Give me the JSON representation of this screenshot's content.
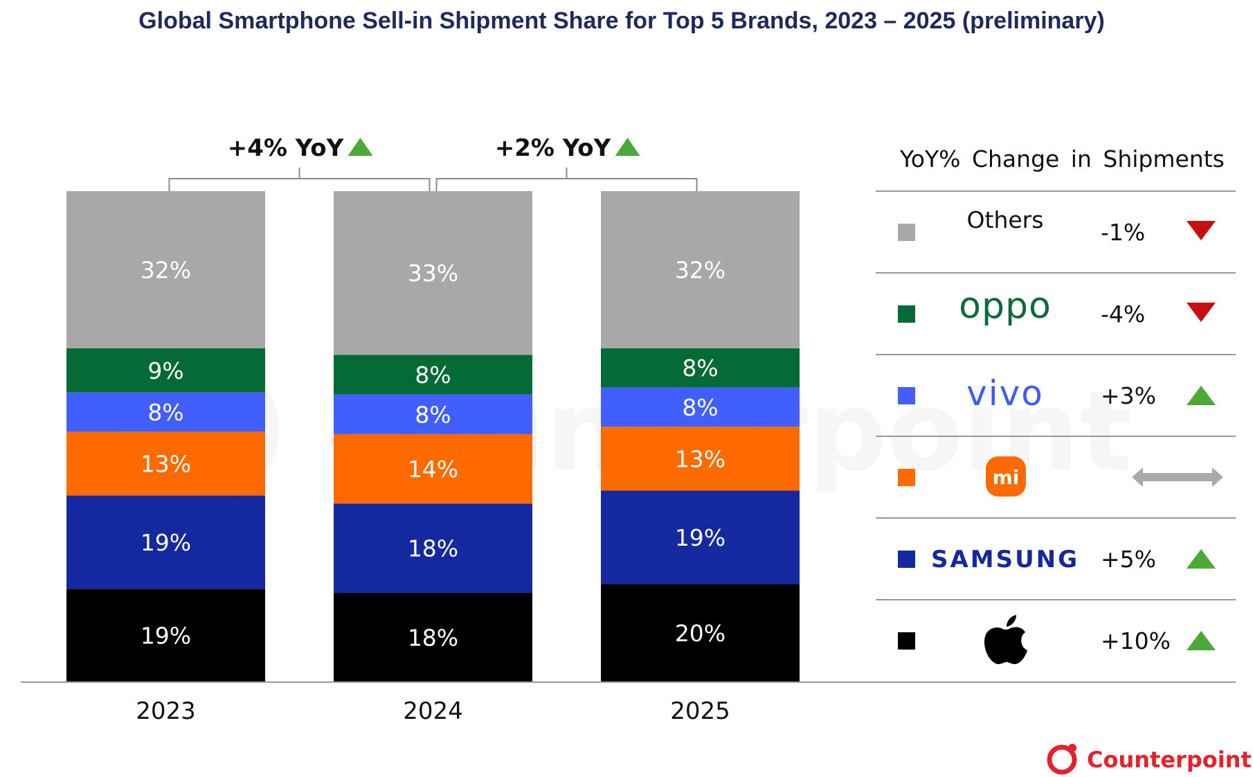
{
  "title": "Global Smartphone Sell-in Shipment Share for Top 5 Brands, 2023 – 2025 (preliminary)",
  "chart_data": {
    "type": "bar",
    "stacked": true,
    "categories": [
      "2023",
      "2024",
      "2025"
    ],
    "series": [
      {
        "key": "apple",
        "color": "#000000",
        "text_color": "#ffffff",
        "values": [
          19,
          18,
          20
        ]
      },
      {
        "key": "samsung",
        "color": "#1428a0",
        "text_color": "#ffffff",
        "values": [
          19,
          18,
          19
        ]
      },
      {
        "key": "xiaomi",
        "color": "#ff6a00",
        "text_color": "#ffffff",
        "values": [
          13,
          14,
          13
        ]
      },
      {
        "key": "vivo",
        "color": "#415fff",
        "text_color": "#ffffff",
        "values": [
          8,
          8,
          8
        ]
      },
      {
        "key": "oppo",
        "color": "#046b37",
        "text_color": "#ffffff",
        "values": [
          9,
          8,
          8
        ]
      },
      {
        "key": "others",
        "name": "Others",
        "color": "#a8a8a8",
        "text_color": "#ffffff",
        "values": [
          32,
          33,
          32
        ]
      }
    ],
    "value_suffix": "%",
    "yoy_annotations": [
      {
        "from": "2023",
        "to": "2024",
        "label": "+4% YoY",
        "direction": "up"
      },
      {
        "from": "2024",
        "to": "2025",
        "label": "+2% YoY",
        "direction": "up"
      }
    ],
    "legend": {
      "title": "YoY% Change in Shipments",
      "placement": "right",
      "items": [
        {
          "key": "others",
          "name": "Others",
          "change": "-1%",
          "direction": "down",
          "color": "#a8a8a8"
        },
        {
          "key": "oppo",
          "brand_text": "oppo",
          "change": "-4%",
          "direction": "down",
          "color": "#046b37"
        },
        {
          "key": "vivo",
          "brand_text": "vivo",
          "change": "+3%",
          "direction": "up",
          "color": "#415fff"
        },
        {
          "key": "xiaomi",
          "brand_text": "mi",
          "change": "",
          "direction": "flat",
          "color": "#ff6a00"
        },
        {
          "key": "samsung",
          "brand_text": "SAMSUNG",
          "change": "+5%",
          "direction": "up",
          "color": "#1428a0"
        },
        {
          "key": "apple",
          "change": "+10%",
          "direction": "up",
          "color": "#000000"
        }
      ]
    }
  },
  "colors": {
    "up": "#4ca935",
    "down": "#c80f0f",
    "flat": "#a9a9a9",
    "title": "#1f2a5c",
    "brand": "#e2232f"
  },
  "icons": {
    "up": "triangle-up-icon",
    "down": "triangle-down-icon",
    "flat": "double-arrow-icon",
    "apple": "apple-logo-icon"
  },
  "watermark": "counterpoint",
  "brand_logo": {
    "text": "Counterpoint"
  }
}
